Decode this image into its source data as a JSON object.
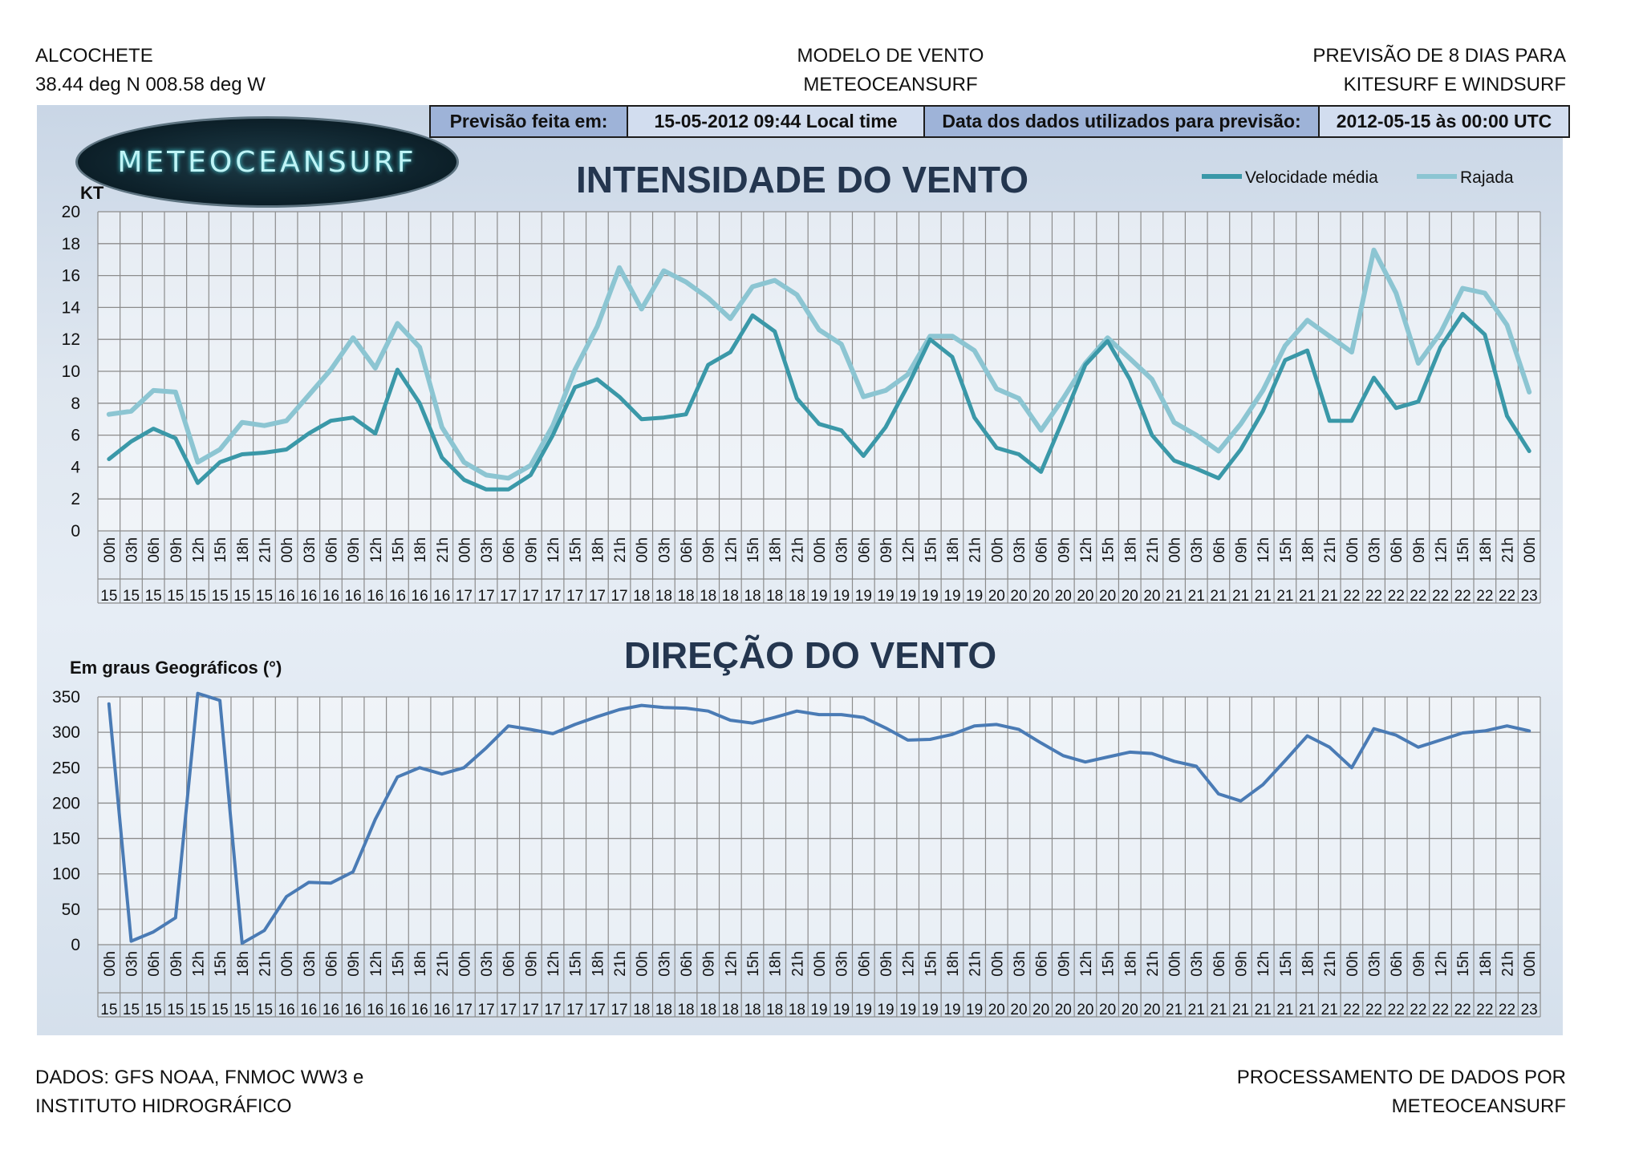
{
  "header": {
    "left": [
      "ALCOCHETE",
      "38.44 deg N 008.58 deg W"
    ],
    "center": [
      "MODELO DE VENTO",
      "METEOCEANSURF"
    ],
    "right": [
      "PREVISÃO DE 8 DIAS PARA",
      "KITESURF E WINDSURF"
    ]
  },
  "infobar": {
    "made_label": "Previsão feita em:",
    "made_value": "15-05-2012 09:44    Local time",
    "data_label": "Data dos dados utilizados para previsão:",
    "data_value": "2012-05-15  às  00:00 UTC"
  },
  "logo": {
    "text": "METEOCEANSURF"
  },
  "footer": {
    "left": [
      "DADOS: GFS NOAA, FNMOC WW3 e",
      "INSTITUTO HIDROGRÁFICO"
    ],
    "right": [
      "PROCESSAMENTO DE DADOS POR",
      "METEOCEANSURF"
    ]
  },
  "colors": {
    "speed": "#3a98a8",
    "gust": "#8cc5d2",
    "direction": "#4a7bb5",
    "grid": "#8c8c8c"
  },
  "chart_data": [
    {
      "type": "line",
      "title": "INTENSIDADE DO VENTO",
      "ylabel": "KT",
      "ylim": [
        0,
        20
      ],
      "yticks": [
        0,
        2,
        4,
        6,
        8,
        10,
        12,
        14,
        16,
        18,
        20
      ],
      "legend": "top-right",
      "grid": true,
      "hours": [
        "00h",
        "03h",
        "06h",
        "09h",
        "12h",
        "15h",
        "18h",
        "21h",
        "00h",
        "03h",
        "06h",
        "09h",
        "12h",
        "15h",
        "18h",
        "21h",
        "00h",
        "03h",
        "06h",
        "09h",
        "12h",
        "15h",
        "18h",
        "21h",
        "00h",
        "03h",
        "06h",
        "09h",
        "12h",
        "15h",
        "18h",
        "21h",
        "00h",
        "03h",
        "06h",
        "09h",
        "12h",
        "15h",
        "18h",
        "21h",
        "00h",
        "03h",
        "06h",
        "09h",
        "12h",
        "15h",
        "18h",
        "21h",
        "00h",
        "03h",
        "06h",
        "09h",
        "12h",
        "15h",
        "18h",
        "21h",
        "00h",
        "03h",
        "06h",
        "09h",
        "12h",
        "15h",
        "18h",
        "21h",
        "00h"
      ],
      "days": [
        "15",
        "15",
        "15",
        "15",
        "15",
        "15",
        "15",
        "15",
        "16",
        "16",
        "16",
        "16",
        "16",
        "16",
        "16",
        "16",
        "17",
        "17",
        "17",
        "17",
        "17",
        "17",
        "17",
        "17",
        "18",
        "18",
        "18",
        "18",
        "18",
        "18",
        "18",
        "18",
        "19",
        "19",
        "19",
        "19",
        "19",
        "19",
        "19",
        "19",
        "20",
        "20",
        "20",
        "20",
        "20",
        "20",
        "20",
        "20",
        "21",
        "21",
        "21",
        "21",
        "21",
        "21",
        "21",
        "21",
        "22",
        "22",
        "22",
        "22",
        "22",
        "22",
        "22",
        "22",
        "23"
      ],
      "series": [
        {
          "name": "Velocidade média",
          "values": [
            4.5,
            5.6,
            6.4,
            5.8,
            3.0,
            4.3,
            4.8,
            4.9,
            5.1,
            6.1,
            6.9,
            7.1,
            6.1,
            10.1,
            8.0,
            4.6,
            3.2,
            2.6,
            2.6,
            3.5,
            6.0,
            9.0,
            9.5,
            8.4,
            7.0,
            7.1,
            7.3,
            10.4,
            11.2,
            13.5,
            12.5,
            8.3,
            6.7,
            6.3,
            4.7,
            6.5,
            9.1,
            12.0,
            10.9,
            7.1,
            5.2,
            4.8,
            3.7,
            7.0,
            10.4,
            11.9,
            9.5,
            6.0,
            4.4,
            3.9,
            3.3,
            5.1,
            7.5,
            10.7,
            11.3,
            6.9,
            6.9,
            9.6,
            7.7,
            8.1,
            11.5,
            13.6,
            12.3,
            7.2,
            5.0
          ]
        },
        {
          "name": "Rajada",
          "values": [
            7.3,
            7.5,
            8.8,
            8.7,
            4.3,
            5.1,
            6.8,
            6.6,
            6.9,
            8.5,
            10.1,
            12.1,
            10.2,
            13.0,
            11.5,
            6.5,
            4.3,
            3.5,
            3.3,
            4.1,
            6.6,
            10.1,
            12.8,
            16.5,
            13.9,
            16.3,
            15.6,
            14.6,
            13.3,
            15.3,
            15.7,
            14.8,
            12.6,
            11.7,
            8.4,
            8.8,
            9.8,
            12.2,
            12.2,
            11.3,
            8.9,
            8.3,
            6.3,
            8.3,
            10.5,
            12.1,
            10.8,
            9.5,
            6.8,
            6.0,
            5.0,
            6.7,
            8.8,
            11.6,
            13.2,
            12.2,
            11.2,
            17.6,
            14.9,
            10.5,
            12.4,
            15.2,
            14.9,
            12.9,
            8.7
          ]
        }
      ]
    },
    {
      "type": "line",
      "title": "DIREÇÃO DO VENTO",
      "ylabel": "Em graus Geográficos (°)",
      "ylim": [
        0,
        350
      ],
      "yticks": [
        0,
        50,
        100,
        150,
        200,
        250,
        300,
        350
      ],
      "grid": true,
      "series": [
        {
          "values": [
            340,
            5,
            18,
            38,
            355,
            345,
            2,
            20,
            68,
            88,
            87,
            103,
            177,
            237,
            250,
            241,
            250,
            278,
            309,
            304,
            298,
            311,
            322,
            332,
            338,
            335,
            334,
            330,
            317,
            313,
            321,
            330,
            325,
            325,
            321,
            306,
            289,
            290,
            297,
            309,
            311,
            304,
            285,
            267,
            258,
            265,
            272,
            270,
            259,
            252,
            213,
            203,
            226,
            260,
            295,
            279,
            250,
            305,
            296,
            279,
            289,
            299,
            302,
            309,
            302
          ]
        }
      ]
    }
  ]
}
